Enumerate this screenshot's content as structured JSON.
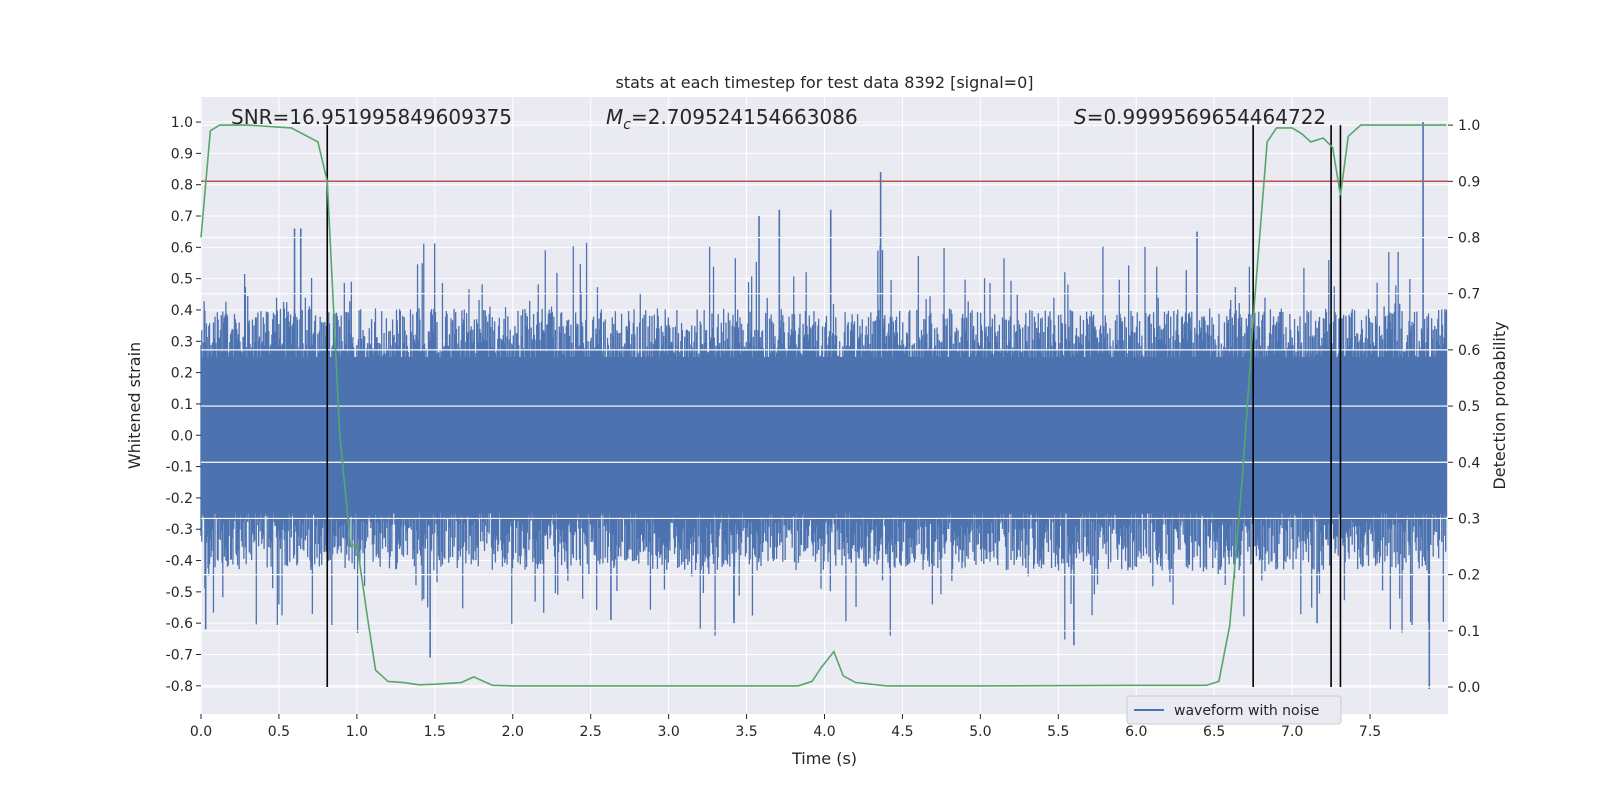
{
  "chart_data": {
    "type": "line",
    "title": "stats at each timestep for test data 8392 [signal=0]",
    "xlabel": "Time (s)",
    "ylabel": "Whitened strain",
    "y2label": "Detection probability",
    "xlim": [
      0.0,
      8.0
    ],
    "ylim": [
      -0.89,
      1.08
    ],
    "y2lim": [
      -0.048,
      1.05
    ],
    "x_ticks": [
      0.0,
      0.5,
      1.0,
      1.5,
      2.0,
      2.5,
      3.0,
      3.5,
      4.0,
      4.5,
      5.0,
      5.5,
      6.0,
      6.5,
      7.0,
      7.5
    ],
    "x_tick_labels": [
      "0.0",
      "0.5",
      "1.0",
      "1.5",
      "2.0",
      "2.5",
      "3.0",
      "3.5",
      "4.0",
      "4.5",
      "5.0",
      "5.5",
      "6.0",
      "6.5",
      "7.0",
      "7.5"
    ],
    "y_ticks": [
      1.0,
      0.9,
      0.8,
      0.7,
      0.6,
      0.5,
      0.4,
      0.3,
      0.2,
      0.1,
      0.0,
      -0.1,
      -0.2,
      -0.3,
      -0.4,
      -0.5,
      -0.6,
      -0.7,
      -0.8
    ],
    "y_tick_labels": [
      "1.0",
      "0.9",
      "0.8",
      "0.7",
      "0.6",
      "0.5",
      "0.4",
      "0.3",
      "0.2",
      "0.1",
      "0.0",
      "-0.1",
      "-0.2",
      "-0.3",
      "-0.4",
      "-0.5",
      "-0.6",
      "-0.7",
      "-0.8"
    ],
    "y2_ticks": [
      1.0,
      0.9,
      0.8,
      0.7,
      0.6,
      0.5,
      0.4,
      0.3,
      0.2,
      0.1,
      0.0
    ],
    "y2_tick_labels": [
      "1.0",
      "0.9",
      "0.8",
      "0.7",
      "0.6",
      "0.5",
      "0.4",
      "0.3",
      "0.2",
      "0.1",
      "0.0"
    ],
    "grid": true,
    "legend": {
      "entries": [
        "waveform with noise"
      ],
      "placement": "lower-right"
    },
    "stats": {
      "snr": "SNR=16.951995849609375",
      "mc_symbol": "M",
      "mc_sub": "c",
      "mc_value": "=2.709524154663086",
      "s_symbol": "S",
      "s_value": "=0.9999569654464722"
    },
    "threshold": {
      "axis": "y2",
      "value": 0.9
    },
    "vertical_lines": [
      0.81,
      6.75,
      7.25,
      7.31
    ],
    "waveform": {
      "name": "waveform with noise",
      "x_range": [
        0.0,
        7.99
      ],
      "samples": 1600,
      "typical_max": 0.3,
      "typical_min": -0.32,
      "peaks": [
        {
          "x": 0.03,
          "y": -0.62
        },
        {
          "x": 0.6,
          "y": 0.66
        },
        {
          "x": 0.64,
          "y": 0.66
        },
        {
          "x": 1.47,
          "y": -0.71
        },
        {
          "x": 2.63,
          "y": -0.59
        },
        {
          "x": 3.42,
          "y": -0.6
        },
        {
          "x": 3.58,
          "y": 0.7
        },
        {
          "x": 3.71,
          "y": 0.72
        },
        {
          "x": 4.04,
          "y": 0.72
        },
        {
          "x": 4.36,
          "y": 0.84
        },
        {
          "x": 5.6,
          "y": -0.67
        },
        {
          "x": 6.39,
          "y": 0.65
        },
        {
          "x": 7.16,
          "y": -0.6
        },
        {
          "x": 7.84,
          "y": 1.0
        },
        {
          "x": 7.88,
          "y": -0.81
        }
      ]
    },
    "series": [
      {
        "name": "detection probability",
        "axis": "y2",
        "color": "#55a868",
        "x": [
          0.0,
          0.06,
          0.12,
          0.3,
          0.58,
          0.75,
          0.81,
          0.89,
          0.96,
          1.0,
          1.07,
          1.12,
          1.2,
          1.3,
          1.4,
          1.5,
          1.67,
          1.75,
          1.87,
          2.0,
          2.5,
          3.0,
          3.5,
          3.83,
          3.92,
          3.98,
          4.06,
          4.12,
          4.2,
          4.4,
          5.0,
          6.0,
          6.45,
          6.53,
          6.6,
          6.68,
          6.76,
          6.84,
          6.9,
          7.0,
          7.06,
          7.12,
          7.2,
          7.26,
          7.31,
          7.36,
          7.44,
          7.6,
          7.99
        ],
        "y": [
          0.8,
          0.99,
          1.0,
          1.0,
          0.995,
          0.97,
          0.9,
          0.45,
          0.25,
          0.255,
          0.12,
          0.03,
          0.01,
          0.008,
          0.004,
          0.005,
          0.008,
          0.018,
          0.003,
          0.002,
          0.002,
          0.002,
          0.002,
          0.002,
          0.01,
          0.035,
          0.063,
          0.02,
          0.008,
          0.002,
          0.002,
          0.003,
          0.003,
          0.01,
          0.11,
          0.37,
          0.69,
          0.97,
          0.995,
          0.995,
          0.985,
          0.97,
          0.977,
          0.96,
          0.875,
          0.98,
          1.0,
          1.0,
          1.0
        ]
      }
    ]
  },
  "colors": {
    "waveform": "#4c72b0",
    "probability": "#55a868",
    "threshold": "#c44e52",
    "vertical_line": "#000000",
    "plot_background": "#eaeaf2",
    "grid": "#ffffff"
  }
}
